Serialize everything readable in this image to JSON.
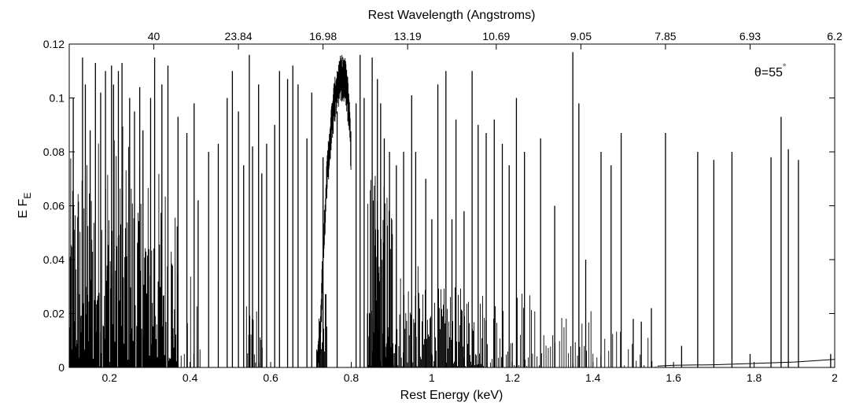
{
  "chart_data": {
    "type": "line",
    "xlabel": "Rest Energy (keV)",
    "ylabel_main": "E F",
    "ylabel_sub": "E",
    "top_xlabel": "Rest Wavelength (Angstroms)",
    "annotation": {
      "text": "θ=55",
      "superscript": "°",
      "x": 1.84,
      "y": 0.108
    },
    "xlim": [
      0.1,
      2.0
    ],
    "ylim": [
      0,
      0.12
    ],
    "x_ticks": [
      {
        "value": 0.2,
        "label": "0.2"
      },
      {
        "value": 0.4,
        "label": "0.4"
      },
      {
        "value": 0.6,
        "label": "0.6"
      },
      {
        "value": 0.8,
        "label": "0.8"
      },
      {
        "value": 1.0,
        "label": "1"
      },
      {
        "value": 1.2,
        "label": "1.2"
      },
      {
        "value": 1.4,
        "label": "1.4"
      },
      {
        "value": 1.6,
        "label": "1.6"
      },
      {
        "value": 1.8,
        "label": "1.8"
      },
      {
        "value": 2.0,
        "label": "2"
      }
    ],
    "y_ticks": [
      {
        "value": 0,
        "label": "0"
      },
      {
        "value": 0.02,
        "label": "0.02"
      },
      {
        "value": 0.04,
        "label": "0.04"
      },
      {
        "value": 0.06,
        "label": "0.06"
      },
      {
        "value": 0.08,
        "label": "0.08"
      },
      {
        "value": 0.1,
        "label": "0.1"
      },
      {
        "value": 0.12,
        "label": "0.12"
      }
    ],
    "top_ticks": [
      {
        "value": 0.31,
        "label": "40"
      },
      {
        "value": 0.52,
        "label": "23.84"
      },
      {
        "value": 0.73,
        "label": "16.98"
      },
      {
        "value": 0.94,
        "label": "13.19"
      },
      {
        "value": 1.16,
        "label": "10.69"
      },
      {
        "value": 1.37,
        "label": "9.05"
      },
      {
        "value": 1.58,
        "label": "7.85"
      },
      {
        "value": 1.79,
        "label": "6.93"
      },
      {
        "value": 2.0,
        "label": "6.2"
      }
    ],
    "grid": false,
    "series": [
      {
        "color": "#000000",
        "dense_bands": [
          {
            "x0": 0.1,
            "x1": 0.158,
            "density": 1.6,
            "amp": 0.078
          },
          {
            "x0": 0.158,
            "x1": 0.255,
            "density": 1.2,
            "amp": 0.09
          },
          {
            "x0": 0.255,
            "x1": 0.345,
            "density": 1.1,
            "amp": 0.075
          },
          {
            "x0": 0.345,
            "x1": 0.37,
            "density": 1.2,
            "amp": 0.062
          },
          {
            "x0": 0.37,
            "x1": 0.43,
            "density": 0.25,
            "amp": 0.035
          },
          {
            "x0": 0.54,
            "x1": 0.58,
            "density": 0.7,
            "amp": 0.03
          },
          {
            "x0": 0.72,
            "x1": 0.74,
            "density": 1.0,
            "amp": 0.03
          },
          {
            "x0": 0.84,
            "x1": 0.905,
            "density": 1.6,
            "amp": 0.072
          },
          {
            "x0": 0.905,
            "x1": 0.97,
            "density": 0.9,
            "amp": 0.038
          },
          {
            "x0": 0.97,
            "x1": 1.13,
            "density": 1.0,
            "amp": 0.03
          },
          {
            "x0": 1.13,
            "x1": 1.25,
            "density": 0.5,
            "amp": 0.03
          },
          {
            "x0": 1.25,
            "x1": 1.4,
            "density": 0.35,
            "amp": 0.022
          },
          {
            "x0": 1.4,
            "x1": 1.56,
            "density": 0.2,
            "amp": 0.014
          }
        ],
        "edge_feature": {
          "x": [
            0.714,
            0.722,
            0.728,
            0.735,
            0.742,
            0.75,
            0.757,
            0.764,
            0.772,
            0.78,
            0.788,
            0.796,
            0.8
          ],
          "y": [
            0.002,
            0.012,
            0.035,
            0.06,
            0.078,
            0.091,
            0.1,
            0.106,
            0.11,
            0.111,
            0.108,
            0.095,
            0.08
          ],
          "amp": 0.008
        },
        "continuum": {
          "x": [
            1.56,
            1.6,
            1.7,
            1.8,
            1.9,
            2.0
          ],
          "y": [
            0.0005,
            0.0008,
            0.001,
            0.0015,
            0.002,
            0.003
          ]
        },
        "lines": [
          [
            0.11,
            0.1
          ],
          [
            0.133,
            0.115
          ],
          [
            0.14,
            0.105
          ],
          [
            0.152,
            0.088
          ],
          [
            0.165,
            0.113
          ],
          [
            0.178,
            0.102
          ],
          [
            0.19,
            0.11
          ],
          [
            0.205,
            0.112
          ],
          [
            0.21,
            0.105
          ],
          [
            0.222,
            0.11
          ],
          [
            0.231,
            0.113
          ],
          [
            0.25,
            0.1
          ],
          [
            0.262,
            0.095
          ],
          [
            0.275,
            0.104
          ],
          [
            0.283,
            0.088
          ],
          [
            0.302,
            0.1
          ],
          [
            0.312,
            0.115
          ],
          [
            0.33,
            0.105
          ],
          [
            0.345,
            0.112
          ],
          [
            0.37,
            0.093
          ],
          [
            0.392,
            0.087
          ],
          [
            0.41,
            0.098
          ],
          [
            0.42,
            0.062
          ],
          [
            0.446,
            0.08
          ],
          [
            0.47,
            0.083
          ],
          [
            0.492,
            0.1
          ],
          [
            0.505,
            0.11
          ],
          [
            0.52,
            0.095
          ],
          [
            0.533,
            0.075
          ],
          [
            0.547,
            0.116
          ],
          [
            0.555,
            0.082
          ],
          [
            0.57,
            0.105
          ],
          [
            0.578,
            0.072
          ],
          [
            0.59,
            0.083
          ],
          [
            0.61,
            0.09
          ],
          [
            0.622,
            0.11
          ],
          [
            0.642,
            0.107
          ],
          [
            0.655,
            0.112
          ],
          [
            0.668,
            0.105
          ],
          [
            0.69,
            0.085
          ],
          [
            0.702,
            0.102
          ],
          [
            0.73,
            0.078
          ],
          [
            0.765,
            0.095
          ],
          [
            0.812,
            0.098
          ],
          [
            0.822,
            0.116
          ],
          [
            0.832,
            0.1
          ],
          [
            0.852,
            0.115
          ],
          [
            0.865,
            0.107
          ],
          [
            0.873,
            0.098
          ],
          [
            0.882,
            0.085
          ],
          [
            0.895,
            0.08
          ],
          [
            0.912,
            0.075
          ],
          [
            0.93,
            0.08
          ],
          [
            0.95,
            0.101
          ],
          [
            0.96,
            0.08
          ],
          [
            0.985,
            0.07
          ],
          [
            1.0,
            0.055
          ],
          [
            1.015,
            0.105
          ],
          [
            1.035,
            0.11
          ],
          [
            1.05,
            0.055
          ],
          [
            1.06,
            0.092
          ],
          [
            1.08,
            0.058
          ],
          [
            1.1,
            0.11
          ],
          [
            1.115,
            0.09
          ],
          [
            1.135,
            0.087
          ],
          [
            1.155,
            0.092
          ],
          [
            1.175,
            0.083
          ],
          [
            1.192,
            0.075
          ],
          [
            1.21,
            0.1
          ],
          [
            1.23,
            0.08
          ],
          [
            1.27,
            0.085
          ],
          [
            1.305,
            0.06
          ],
          [
            1.35,
            0.117
          ],
          [
            1.365,
            0.098
          ],
          [
            1.382,
            0.04
          ],
          [
            1.42,
            0.08
          ],
          [
            1.445,
            0.075
          ],
          [
            1.47,
            0.087
          ],
          [
            1.5,
            0.018
          ],
          [
            1.52,
            0.017
          ],
          [
            1.545,
            0.022
          ],
          [
            1.58,
            0.087
          ],
          [
            1.62,
            0.008
          ],
          [
            1.66,
            0.08
          ],
          [
            1.7,
            0.077
          ],
          [
            1.745,
            0.08
          ],
          [
            1.79,
            0.005
          ],
          [
            1.842,
            0.078
          ],
          [
            1.867,
            0.093
          ],
          [
            1.885,
            0.081
          ],
          [
            1.91,
            0.077
          ],
          [
            1.99,
            0.005
          ]
        ]
      }
    ]
  }
}
